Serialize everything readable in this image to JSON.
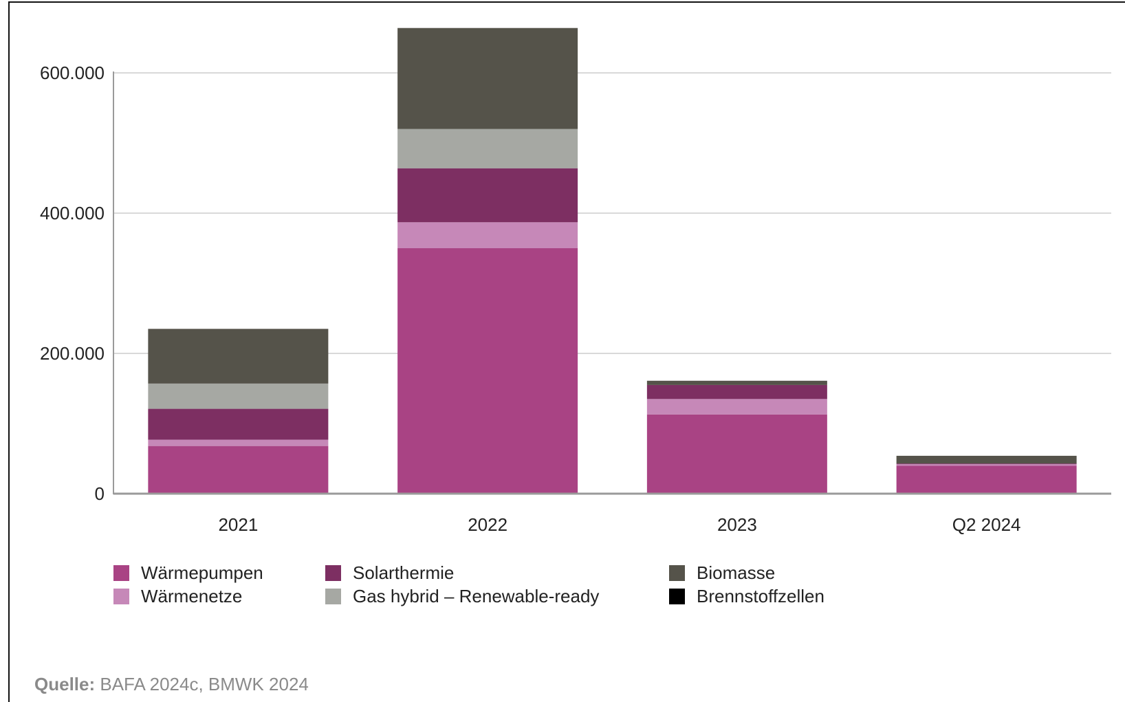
{
  "chart_data": {
    "type": "bar",
    "stacked": true,
    "categories": [
      "2021",
      "2022",
      "2023",
      "Q2 2024"
    ],
    "series": [
      {
        "name": "Wärmepumpen",
        "color": "#a94384",
        "values": [
          68000,
          350000,
          113000,
          40000
        ]
      },
      {
        "name": "Wärmenetze",
        "color": "#c688b8",
        "values": [
          9000,
          37000,
          22000,
          2000
        ]
      },
      {
        "name": "Solarthermie",
        "color": "#7d2f62",
        "values": [
          44000,
          77000,
          20000,
          1000
        ]
      },
      {
        "name": "Gas hybrid – Renewable-ready",
        "color": "#a6a8a3",
        "values": [
          36000,
          56000,
          0,
          0
        ]
      },
      {
        "name": "Biomasse",
        "color": "#55534a",
        "values": [
          78000,
          144000,
          6000,
          11000
        ]
      },
      {
        "name": "Brennstoffzellen",
        "color": "#000000",
        "values": [
          0,
          0,
          0,
          0
        ]
      }
    ],
    "y_ticks": [
      0,
      200000,
      400000,
      600000
    ],
    "y_tick_labels": [
      "0",
      "200.000",
      "400.000",
      "600.000"
    ],
    "ylim": [
      0,
      660000
    ],
    "grid": true,
    "legend_position": "bottom",
    "title": "",
    "xlabel": "",
    "ylabel": ""
  },
  "source": {
    "label": "Quelle:",
    "text": "BAFA 2024c, BMWK 2024"
  }
}
